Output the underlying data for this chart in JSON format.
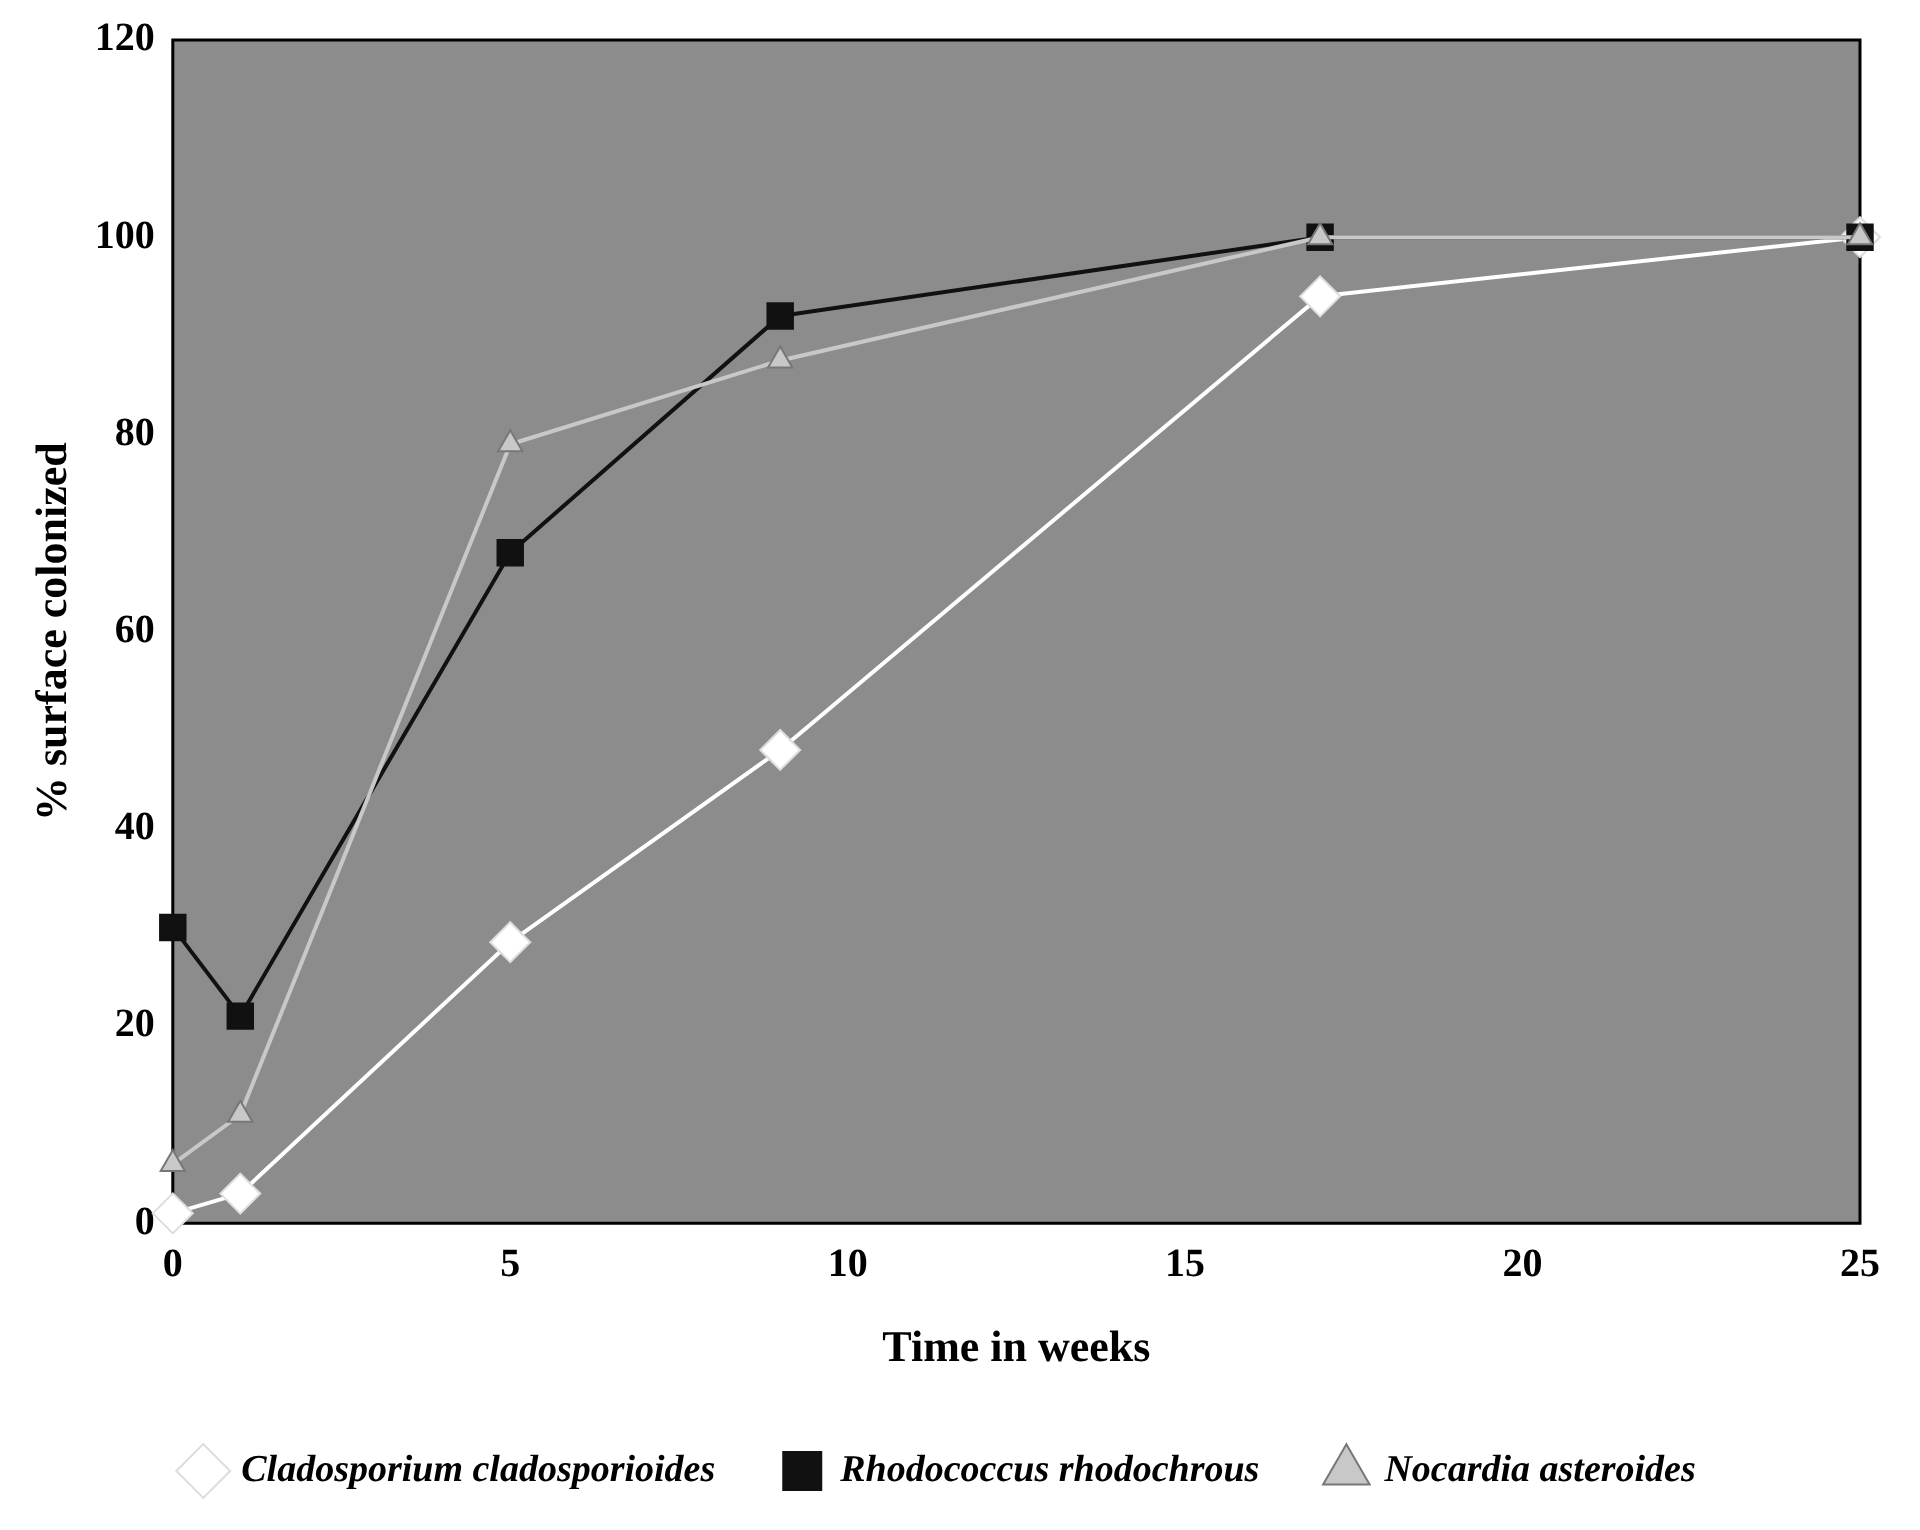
{
  "chart_data": {
    "type": "line",
    "xlabel": "Time in weeks",
    "ylabel": "% surface colonized",
    "x": [
      0,
      1,
      5,
      9,
      17,
      25
    ],
    "series": [
      {
        "name": "Cladosporium cladosporioides",
        "color": "#ffffff",
        "marker": "diamond",
        "values": [
          1,
          3,
          28.5,
          48,
          94,
          100
        ]
      },
      {
        "name": "Rhodococcus rhodochrous",
        "color": "#111111",
        "marker": "square",
        "values": [
          30,
          21,
          68,
          92,
          100,
          100
        ]
      },
      {
        "name": "Nocardia asteroides",
        "color": "#c8c8c8",
        "marker": "triangle",
        "values": [
          6,
          11,
          79,
          87.5,
          100,
          100
        ]
      }
    ],
    "xlim": [
      0,
      25
    ],
    "xticks": [
      0,
      5,
      10,
      15,
      20,
      25
    ],
    "ylim": [
      0,
      120
    ],
    "yticks": [
      0,
      20,
      40,
      60,
      80,
      100,
      120
    ],
    "grid": false,
    "legend": "bottom",
    "line_style": "solid"
  }
}
